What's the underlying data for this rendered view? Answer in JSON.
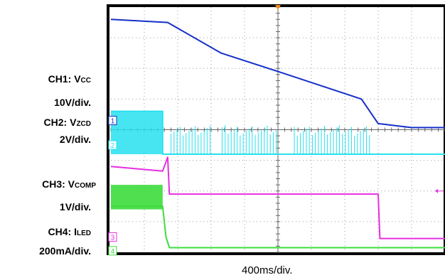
{
  "labels": [
    {
      "id": "ch1",
      "prefix": "CH1: V",
      "sub": "CC",
      "scale": "10V/div.",
      "color": "#2b2b8f"
    },
    {
      "id": "ch2",
      "prefix": "CH2: V",
      "sub": "ZCD",
      "scale": "2V/div.",
      "color": "#1fb7d8"
    },
    {
      "id": "ch3",
      "prefix": "CH3: V",
      "sub": "COMP",
      "scale": "1V/div.",
      "color": "#e01fd0"
    },
    {
      "id": "ch4",
      "prefix": "CH4: I",
      "sub": "LED",
      "scale": "200mA/div.",
      "color": "#22b022"
    }
  ],
  "timebase": "400ms/div.",
  "chart_data": {
    "type": "line",
    "grid": true,
    "x_divisions": 10,
    "y_divisions": 8,
    "xlabel": "400ms/div.",
    "ground_markers": [
      "1",
      "2",
      "3",
      "4"
    ],
    "series": [
      {
        "name": "CH1: VCC",
        "color": "#1530c8",
        "x": [
          0,
          1.7,
          3.3,
          5.0,
          7.5,
          8.0,
          9.0,
          10.0
        ],
        "y": [
          7.6,
          7.5,
          6.5,
          5.9,
          5.0,
          4.2,
          4.07,
          4.07
        ]
      },
      {
        "name": "CH2: VZCD",
        "color": "#27e0f0",
        "x": [
          0,
          1.55,
          1.55,
          1.75,
          7.8,
          10.0
        ],
        "y": [
          4.6,
          4.6,
          3.2,
          3.2,
          3.2,
          3.2
        ]
      },
      {
        "name": "CH3: VCOMP",
        "color": "#e62fe0",
        "x": [
          0,
          1.55,
          1.7,
          1.75,
          8.0,
          8.05,
          10.0
        ],
        "y": [
          2.8,
          2.65,
          3.1,
          1.9,
          1.9,
          0.45,
          0.45
        ]
      },
      {
        "name": "CH4: ILED",
        "color": "#3cdc3c",
        "x": [
          0,
          1.55,
          1.65,
          1.75,
          10.0
        ],
        "y": [
          1.5,
          1.5,
          0.5,
          0.15,
          0.15
        ]
      }
    ]
  }
}
